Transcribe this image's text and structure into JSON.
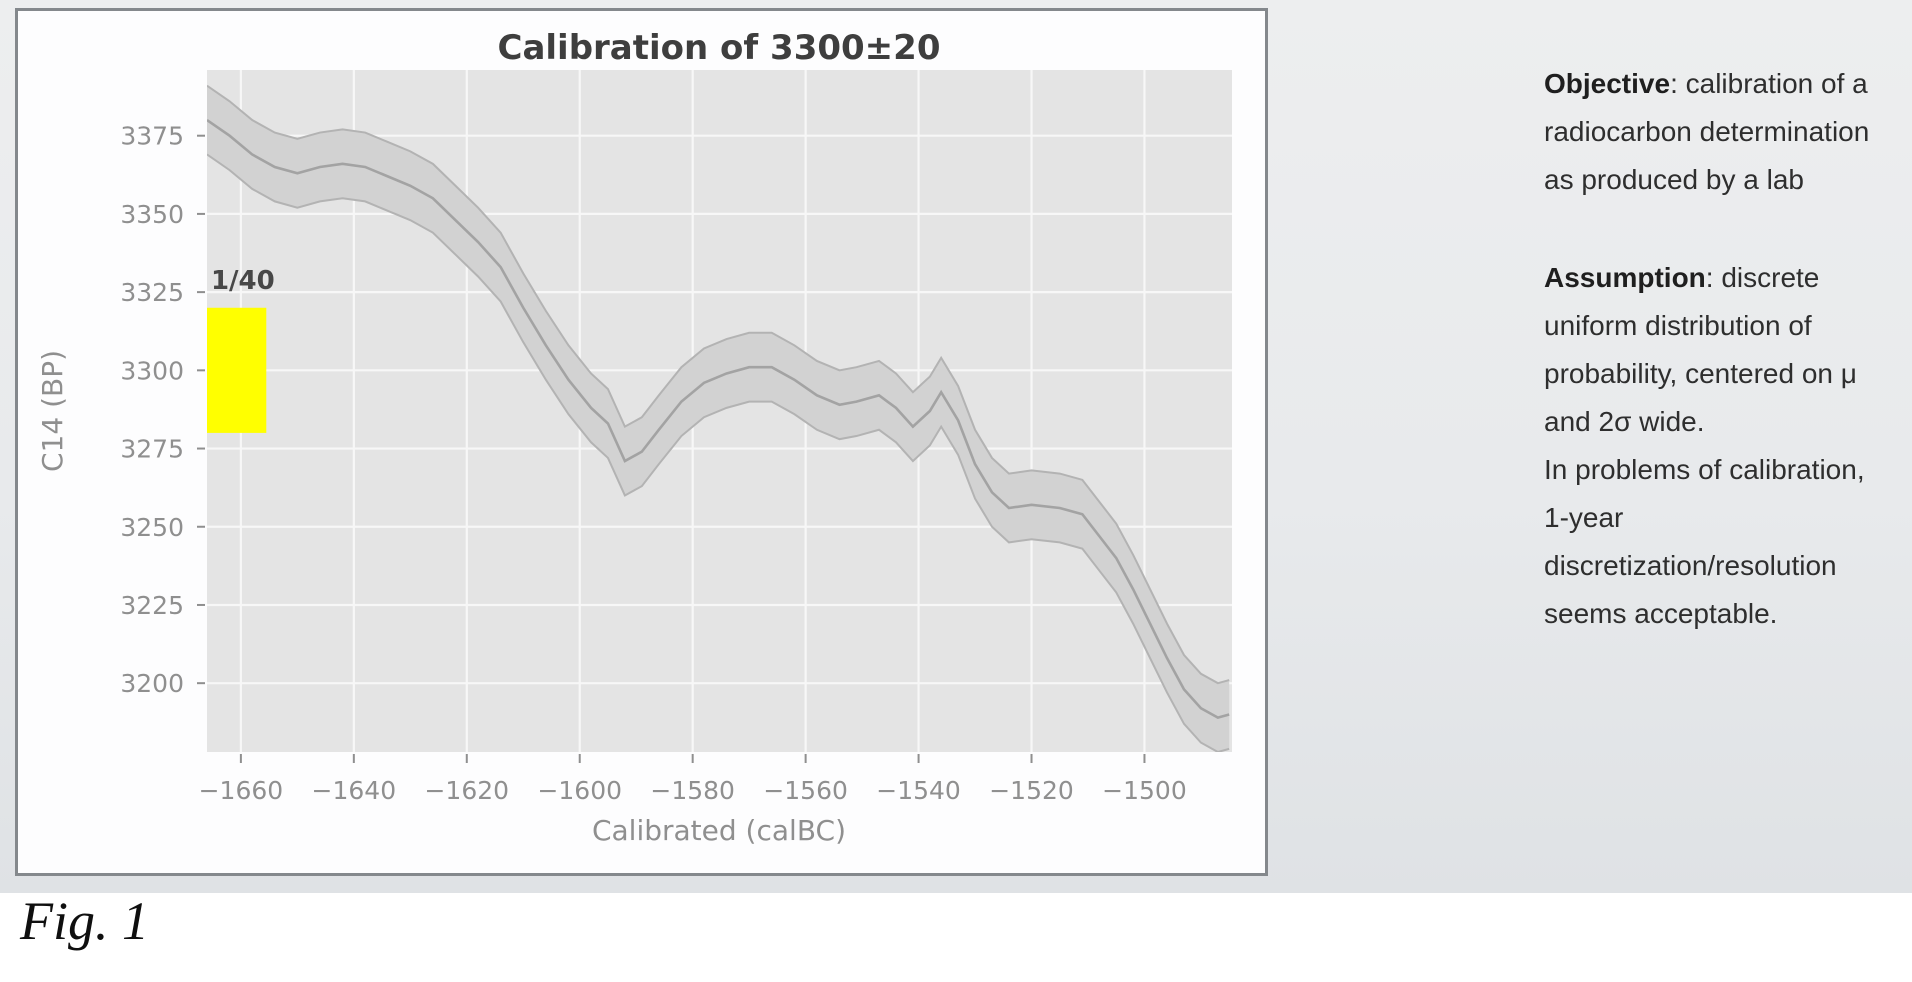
{
  "slide": {
    "fig_caption": "Fig. 1",
    "notes": {
      "objective": {
        "lead": "Objective",
        "text": ": calibration of a\nradiocarbon determination\nas produced by a lab"
      },
      "assumption": {
        "lead": "Assumption",
        "text": ": discrete\nuniform distribution of\nprobability, centered on μ\nand 2σ wide.\nIn problems of calibration,\n1-year\ndiscretization/resolution\nseems acceptable."
      }
    }
  },
  "chart_data": {
    "type": "line",
    "title": "Calibration of 3300±20",
    "xlabel": "Calibrated (calBC)",
    "ylabel": "C14 (BP)",
    "xlim": [
      -1666,
      -1484.5
    ],
    "ylim": [
      3178,
      3396
    ],
    "grid": true,
    "x_ticks": [
      -1660,
      -1640,
      -1620,
      -1600,
      -1580,
      -1560,
      -1540,
      -1520,
      -1500
    ],
    "x_tick_labels": [
      "−1660",
      "−1640",
      "−1620",
      "−1600",
      "−1580",
      "−1560",
      "−1540",
      "−1520",
      "−1500"
    ],
    "y_ticks": [
      3200,
      3225,
      3250,
      3275,
      3300,
      3325,
      3350,
      3375
    ],
    "y_tick_labels": [
      "3200",
      "3225",
      "3250",
      "3275",
      "3300",
      "3325",
      "3350",
      "3375"
    ],
    "series": [
      {
        "name": "calibration-curve-center",
        "x": [
          -1666,
          -1662,
          -1658,
          -1654,
          -1650,
          -1646,
          -1642,
          -1638,
          -1634,
          -1630,
          -1626,
          -1622,
          -1618,
          -1614,
          -1610,
          -1606,
          -1602,
          -1598,
          -1595,
          -1592,
          -1589,
          -1586,
          -1582,
          -1578,
          -1574,
          -1570,
          -1566,
          -1562,
          -1558,
          -1554,
          -1551,
          -1547,
          -1544,
          -1541,
          -1538,
          -1536,
          -1533,
          -1530,
          -1527,
          -1524,
          -1520,
          -1515,
          -1511,
          -1508,
          -1505,
          -1502,
          -1499,
          -1496,
          -1493,
          -1490,
          -1487,
          -1485
        ],
        "y": [
          3380,
          3375,
          3369,
          3365,
          3363,
          3365,
          3366,
          3365,
          3362,
          3359,
          3355,
          3348,
          3341,
          3333,
          3320,
          3308,
          3297,
          3288,
          3283,
          3271,
          3274,
          3281,
          3290,
          3296,
          3299,
          3301,
          3301,
          3297,
          3292,
          3289,
          3290,
          3292,
          3288,
          3282,
          3287,
          3293,
          3284,
          3270,
          3261,
          3256,
          3257,
          3256,
          3254,
          3247,
          3240,
          3230,
          3219,
          3208,
          3198,
          3192,
          3189,
          3190
        ]
      }
    ],
    "band_halfwidth": 11,
    "measurement_bar": {
      "label": "1/40",
      "x_range": [
        -1666,
        -1655.5
      ],
      "y_range": [
        3280,
        3320
      ],
      "label_pos": {
        "x": -1665.3,
        "y": 3326
      }
    },
    "colors": {
      "plot_bg": "#e4e4e4",
      "grid": "#f7f7f7",
      "band_fill": "#d2d2d2",
      "band_edge": "#b3b3b3",
      "center_line": "#a3a3a3",
      "bar": "#ffff00",
      "tick_text": "#8f8f8f",
      "title_text": "#3e3e3e",
      "annotation_text": "#474747"
    }
  }
}
